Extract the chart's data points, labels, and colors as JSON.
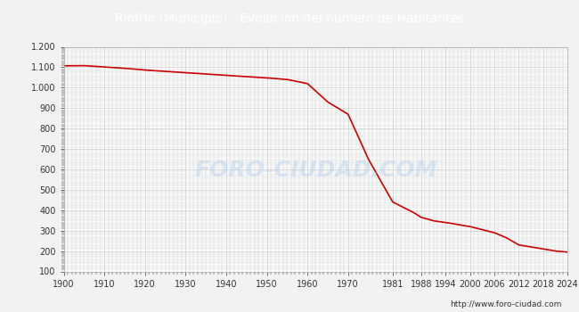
{
  "title": "Riofrío (Municipio) - Evolucion del numero de Habitantes",
  "title_bg_color": "#4472C4",
  "title_text_color": "white",
  "line_color": "#CC0000",
  "bg_color": "#F2F2F2",
  "plot_bg_color": "#FFFFFF",
  "grid_color": "#CCCCCC",
  "url_text": "http://www.foro-ciudad.com",
  "watermark_text": "FORO-CIUDAD.COM",
  "xlim": [
    1900,
    2024
  ],
  "ylim": [
    100,
    1200
  ],
  "yticks": [
    100,
    200,
    300,
    400,
    500,
    600,
    700,
    800,
    900,
    1000,
    1100,
    1200
  ],
  "xtick_labels": [
    "1900",
    "1910",
    "1920",
    "1930",
    "1940",
    "1950",
    "1960",
    "1970",
    "1981",
    "1988",
    "1994",
    "2000",
    "2006",
    "2012",
    "2018",
    "2024"
  ],
  "xtick_positions": [
    1900,
    1910,
    1920,
    1930,
    1940,
    1950,
    1960,
    1970,
    1981,
    1988,
    1994,
    2000,
    2006,
    2012,
    2018,
    2024
  ],
  "data_x": [
    1900,
    1905,
    1910,
    1915,
    1920,
    1925,
    1930,
    1935,
    1940,
    1945,
    1950,
    1955,
    1960,
    1965,
    1970,
    1975,
    1981,
    1986,
    1988,
    1991,
    1994,
    1997,
    2000,
    2003,
    2006,
    2009,
    2012,
    2015,
    2018,
    2021,
    2024
  ],
  "data_y": [
    1107,
    1108,
    1101,
    1095,
    1086,
    1080,
    1073,
    1067,
    1060,
    1054,
    1048,
    1040,
    1020,
    930,
    870,
    650,
    440,
    390,
    365,
    348,
    340,
    330,
    320,
    305,
    290,
    265,
    230,
    220,
    210,
    200,
    195
  ]
}
